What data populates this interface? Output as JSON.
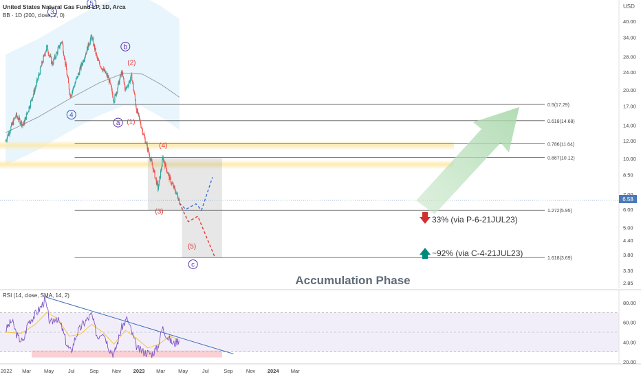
{
  "header": {
    "title": "United States Natural Gas Fund LP, 1D, Arca",
    "indicator": "BB · 1D (200, close, 2, 0)",
    "currency": "USD"
  },
  "rsi_label": "RSI (14, close, SMA, 14, 2)",
  "current_price": "6.58",
  "colors": {
    "up": "#26a69a",
    "down": "#ef5350",
    "fib_line": "#555555",
    "wave_blue": "#3f51b5",
    "wave_red": "#e53935",
    "band_fill": "#e3f2fd",
    "rsi_line": "#7e57c2",
    "rsi_ma": "#f5c542",
    "trendline": "#3f6fbf",
    "yellow_zone": "#fde9a8",
    "green_arrow": "#a5d6a7",
    "pink_zone": "#f8c4c8"
  },
  "chart_data": [
    {
      "type": "candlestick",
      "title": "United States Natural Gas Fund LP, 1D, Arca",
      "y_scale": "log",
      "y_ticks": [
        "40.00",
        "34.00",
        "28.00",
        "24.00",
        "20.00",
        "17.00",
        "14.00",
        "12.00",
        "10.00",
        "8.50",
        "7.00",
        "6.00",
        "5.00",
        "4.40",
        "3.80",
        "3.30",
        "2.85"
      ],
      "x_ticks": [
        "2022",
        "Mar",
        "May",
        "Jul",
        "Sep",
        "Nov",
        "2023",
        "Mar",
        "May",
        "Jul",
        "Sep",
        "Nov",
        "2024",
        "Mar"
      ],
      "path_points": [
        {
          "date": "2022-01-03",
          "price": 12.0
        },
        {
          "date": "2022-01-31",
          "price": 15.5
        },
        {
          "date": "2022-02-20",
          "price": 14.0
        },
        {
          "date": "2022-03-25",
          "price": 20.5
        },
        {
          "date": "2022-04-25",
          "price": 31.0
        },
        {
          "date": "2022-05-10",
          "price": 26.0
        },
        {
          "date": "2022-06-05",
          "price": 33.0
        },
        {
          "date": "2022-06-28",
          "price": 18.8
        },
        {
          "date": "2022-07-20",
          "price": 23.5
        },
        {
          "date": "2022-08-25",
          "price": 34.5
        },
        {
          "date": "2022-09-10",
          "price": 27.0
        },
        {
          "date": "2022-10-10",
          "price": 22.5
        },
        {
          "date": "2022-10-25",
          "price": 18.0
        },
        {
          "date": "2022-11-15",
          "price": 24.0
        },
        {
          "date": "2022-11-25",
          "price": 20.0
        },
        {
          "date": "2022-12-12",
          "price": 23.0
        },
        {
          "date": "2022-12-25",
          "price": 16.5
        },
        {
          "date": "2023-01-15",
          "price": 12.5
        },
        {
          "date": "2023-02-05",
          "price": 9.5
        },
        {
          "date": "2023-02-22",
          "price": 7.4
        },
        {
          "date": "2023-03-07",
          "price": 10.1
        },
        {
          "date": "2023-03-25",
          "price": 8.2
        },
        {
          "date": "2023-04-10",
          "price": 7.2
        },
        {
          "date": "2023-04-21",
          "price": 6.58
        }
      ],
      "bb_basis": [
        {
          "date": "2022-01-03",
          "price": 13.0
        },
        {
          "date": "2022-04-01",
          "price": 15.2
        },
        {
          "date": "2022-07-01",
          "price": 18.5
        },
        {
          "date": "2022-09-15",
          "price": 21.5
        },
        {
          "date": "2022-11-20",
          "price": 23.7
        },
        {
          "date": "2023-01-10",
          "price": 23.5
        },
        {
          "date": "2023-03-01",
          "price": 21.2
        },
        {
          "date": "2023-04-21",
          "price": 18.6
        }
      ],
      "fib_levels": [
        {
          "label": "0.5(17.29)",
          "price": 17.29
        },
        {
          "label": "0.618(14.68)",
          "price": 14.68
        },
        {
          "label": "0.786(11.64)",
          "price": 11.64
        },
        {
          "label": "0.887(10.12)",
          "price": 10.12
        },
        {
          "label": "1.272(5.95)",
          "price": 5.95
        },
        {
          "label": "1.618(3.69)",
          "price": 3.69
        }
      ],
      "wave_labels_circled": [
        "3",
        "5",
        "b",
        "4",
        "a",
        "c"
      ],
      "wave_labels_red": [
        "(2)",
        "(1)",
        "(4)",
        "(3)",
        "(5)"
      ],
      "annotations": {
        "put_target": "33% (via P-6-21JUL23)",
        "call_target": "~92% (via C-4-21JUL23)",
        "phase": "Accumulation Phase"
      }
    },
    {
      "type": "line",
      "title": "RSI (14, close, SMA, 14, 2)",
      "y_ticks": [
        "80.00",
        "60.00",
        "40.00",
        "20.00"
      ],
      "levels": [
        70,
        50,
        30
      ],
      "rsi_points": [
        {
          "date": "2022-01-03",
          "rsi": 52
        },
        {
          "date": "2022-01-20",
          "rsi": 62
        },
        {
          "date": "2022-02-05",
          "rsi": 45
        },
        {
          "date": "2022-02-20",
          "rsi": 40
        },
        {
          "date": "2022-03-05",
          "rsi": 60
        },
        {
          "date": "2022-03-20",
          "rsi": 66
        },
        {
          "date": "2022-04-08",
          "rsi": 75
        },
        {
          "date": "2022-04-20",
          "rsi": 83
        },
        {
          "date": "2022-05-05",
          "rsi": 58
        },
        {
          "date": "2022-05-20",
          "rsi": 66
        },
        {
          "date": "2022-06-05",
          "rsi": 55
        },
        {
          "date": "2022-06-20",
          "rsi": 36
        },
        {
          "date": "2022-06-30",
          "rsi": 30
        },
        {
          "date": "2022-07-15",
          "rsi": 48
        },
        {
          "date": "2022-08-01",
          "rsi": 58
        },
        {
          "date": "2022-08-25",
          "rsi": 68
        },
        {
          "date": "2022-09-10",
          "rsi": 45
        },
        {
          "date": "2022-09-25",
          "rsi": 52
        },
        {
          "date": "2022-10-12",
          "rsi": 34
        },
        {
          "date": "2022-10-25",
          "rsi": 27
        },
        {
          "date": "2022-11-15",
          "rsi": 55
        },
        {
          "date": "2022-11-30",
          "rsi": 64
        },
        {
          "date": "2022-12-12",
          "rsi": 50
        },
        {
          "date": "2022-12-28",
          "rsi": 33
        },
        {
          "date": "2023-01-15",
          "rsi": 30
        },
        {
          "date": "2023-02-05",
          "rsi": 28
        },
        {
          "date": "2023-02-20",
          "rsi": 34
        },
        {
          "date": "2023-03-06",
          "rsi": 55
        },
        {
          "date": "2023-03-20",
          "rsi": 45
        },
        {
          "date": "2023-04-05",
          "rsi": 38
        },
        {
          "date": "2023-04-21",
          "rsi": 43
        }
      ],
      "rsi_ma_points": [
        {
          "date": "2022-01-03",
          "rsi": 50
        },
        {
          "date": "2022-02-15",
          "rsi": 49
        },
        {
          "date": "2022-03-25",
          "rsi": 58
        },
        {
          "date": "2022-04-25",
          "rsi": 70
        },
        {
          "date": "2022-05-25",
          "rsi": 64
        },
        {
          "date": "2022-06-25",
          "rsi": 46
        },
        {
          "date": "2022-07-25",
          "rsi": 48
        },
        {
          "date": "2022-08-25",
          "rsi": 58
        },
        {
          "date": "2022-09-25",
          "rsi": 50
        },
        {
          "date": "2022-10-25",
          "rsi": 38
        },
        {
          "date": "2022-11-25",
          "rsi": 52
        },
        {
          "date": "2022-12-25",
          "rsi": 44
        },
        {
          "date": "2023-01-25",
          "rsi": 34
        },
        {
          "date": "2023-02-25",
          "rsi": 38
        },
        {
          "date": "2023-03-25",
          "rsi": 46
        },
        {
          "date": "2023-04-21",
          "rsi": 42
        }
      ],
      "trendline": [
        {
          "date": "2022-04-20",
          "rsi": 86
        },
        {
          "date": "2023-09-15",
          "rsi": 28
        }
      ],
      "oversold_zone": {
        "from": "2022-03-15",
        "to": "2023-08-15"
      }
    }
  ]
}
